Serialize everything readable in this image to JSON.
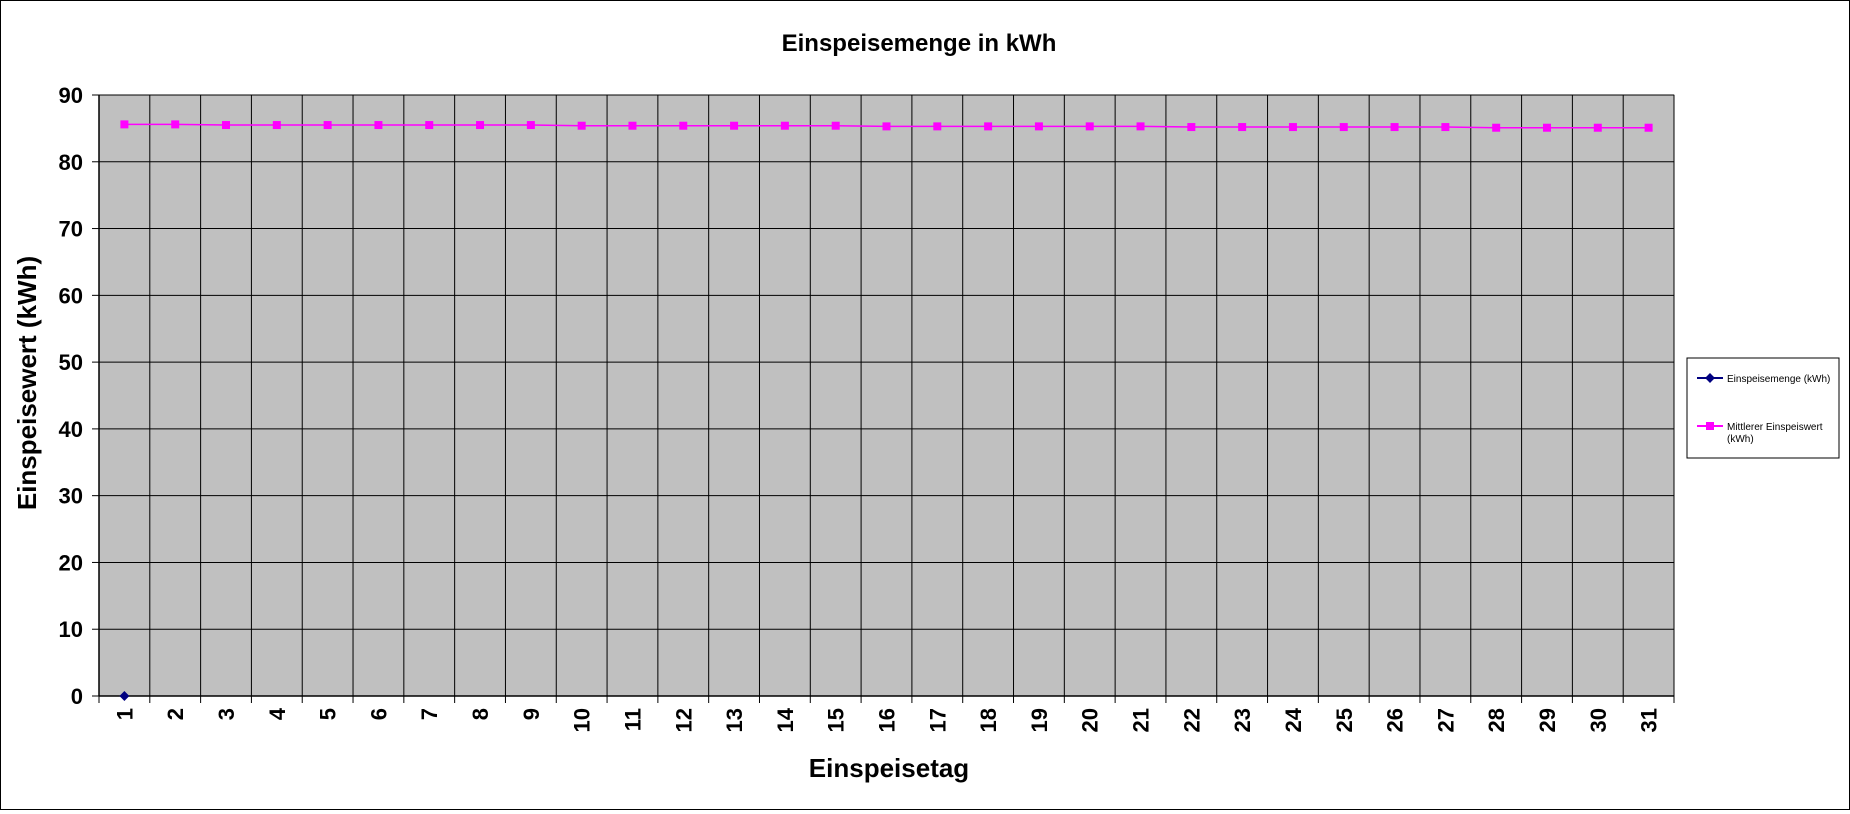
{
  "chart_data": {
    "type": "line",
    "title": "Einspeisemenge in kWh",
    "xlabel": "Einspeisetag",
    "ylabel": "Einspeisewert  (kWh)",
    "categories": [
      "1",
      "2",
      "3",
      "4",
      "5",
      "6",
      "7",
      "8",
      "9",
      "10",
      "11",
      "12",
      "13",
      "14",
      "15",
      "16",
      "17",
      "18",
      "19",
      "20",
      "21",
      "22",
      "23",
      "24",
      "25",
      "26",
      "27",
      "28",
      "29",
      "30",
      "31"
    ],
    "ylim": [
      0,
      90
    ],
    "yticks": [
      "0",
      "10",
      "20",
      "30",
      "40",
      "50",
      "60",
      "70",
      "80",
      "90"
    ],
    "grid": true,
    "legend_position": "right",
    "plot_background": "#c0c0c0",
    "series": [
      {
        "name": "Einspeisemenge (kWh)",
        "color": "#000080",
        "marker": "diamond",
        "values": [
          0,
          null,
          null,
          null,
          null,
          null,
          null,
          null,
          null,
          null,
          null,
          null,
          null,
          null,
          null,
          null,
          null,
          null,
          null,
          null,
          null,
          null,
          null,
          null,
          null,
          null,
          null,
          null,
          null,
          null,
          null
        ]
      },
      {
        "name": "Mittlerer Einspeiswert (kWh)",
        "color": "#ff00ff",
        "marker": "square",
        "values": [
          85.6,
          85.6,
          85.5,
          85.5,
          85.5,
          85.5,
          85.5,
          85.5,
          85.5,
          85.4,
          85.4,
          85.4,
          85.4,
          85.4,
          85.4,
          85.3,
          85.3,
          85.3,
          85.3,
          85.3,
          85.3,
          85.2,
          85.2,
          85.2,
          85.2,
          85.2,
          85.2,
          85.1,
          85.1,
          85.1,
          85.1
        ]
      }
    ]
  }
}
